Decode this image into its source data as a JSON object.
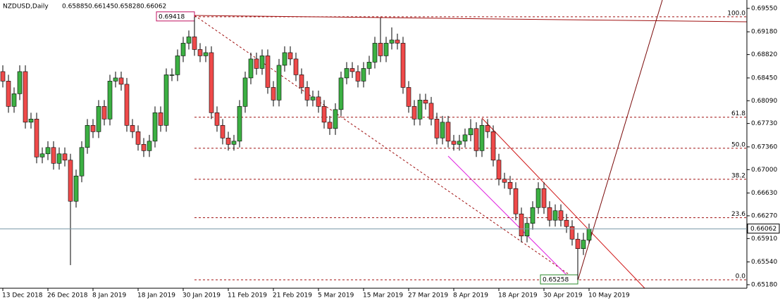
{
  "chart_data": {
    "type": "candlestick",
    "symbol": "NZDUSD,Daily",
    "up_color": "#3cb043",
    "down_color": "#ef4a4a",
    "current_line_color": "#7a9aa8",
    "categories": [
      "13 Dec 2018",
      null,
      null,
      null,
      null,
      null,
      null,
      null,
      "26 Dec 2018",
      null,
      null,
      null,
      null,
      null,
      null,
      null,
      "8 Jan 2019",
      null,
      null,
      null,
      null,
      null,
      null,
      null,
      "18 Jan 2019",
      null,
      null,
      null,
      null,
      null,
      null,
      null,
      "30 Jan 2019",
      null,
      null,
      null,
      null,
      null,
      null,
      null,
      "11 Feb 2019",
      null,
      null,
      null,
      null,
      null,
      null,
      null,
      "21 Feb 2019",
      null,
      null,
      null,
      null,
      null,
      null,
      null,
      "5 Mar 2019",
      null,
      null,
      null,
      null,
      null,
      null,
      null,
      "15 Mar 2019",
      null,
      null,
      null,
      null,
      null,
      null,
      null,
      "27 Mar 2019",
      null,
      null,
      null,
      null,
      null,
      null,
      null,
      "8 Apr 2019",
      null,
      null,
      null,
      null,
      null,
      null,
      null,
      "18 Apr 2019",
      null,
      null,
      null,
      null,
      null,
      null,
      null,
      "30 Apr 2019",
      null,
      null,
      null,
      null,
      null,
      null,
      null,
      "10 May 2019"
    ],
    "open": [
      0.6855,
      0.684,
      0.68,
      0.682,
      0.6855,
      0.6775,
      0.678,
      0.672,
      0.6725,
      0.6735,
      0.671,
      0.6725,
      0.6715,
      0.665,
      0.669,
      0.6735,
      0.677,
      0.676,
      0.68,
      0.678,
      0.684,
      0.6845,
      0.6835,
      0.677,
      0.676,
      0.674,
      0.673,
      0.6745,
      0.679,
      0.677,
      0.685,
      0.685,
      0.688,
      0.69,
      0.691,
      0.689,
      0.688,
      0.6885,
      0.679,
      0.677,
      0.675,
      0.674,
      0.6745,
      0.68,
      0.6845,
      0.6875,
      0.686,
      0.688,
      0.683,
      0.681,
      0.6865,
      0.6885,
      0.6875,
      0.685,
      0.683,
      0.681,
      0.6815,
      0.68,
      0.6775,
      0.6765,
      0.6795,
      0.6845,
      0.686,
      0.6855,
      0.684,
      0.686,
      0.687,
      0.69,
      0.688,
      0.69,
      0.6905,
      0.69,
      0.683,
      0.68,
      0.678,
      0.681,
      0.6805,
      0.678,
      0.675,
      0.6775,
      0.6745,
      0.674,
      0.6745,
      0.6755,
      0.6765,
      0.673,
      0.677,
      0.676,
      0.6715,
      0.6685,
      0.668,
      0.667,
      0.663,
      0.6595,
      0.6615,
      0.664,
      0.667,
      0.664,
      0.662,
      0.6635,
      0.662,
      0.661,
      0.659,
      0.6575,
      0.65885
    ],
    "high": [
      0.6865,
      0.685,
      0.683,
      0.6865,
      0.6865,
      0.679,
      0.679,
      0.6735,
      0.6745,
      0.6745,
      0.6735,
      0.6735,
      0.6725,
      0.67,
      0.6745,
      0.678,
      0.678,
      0.681,
      0.681,
      0.685,
      0.6855,
      0.6855,
      0.6845,
      0.678,
      0.677,
      0.675,
      0.6755,
      0.68,
      0.68,
      0.686,
      0.686,
      0.689,
      0.691,
      0.692,
      0.69418,
      0.69,
      0.6895,
      0.6895,
      0.68,
      0.678,
      0.676,
      0.6755,
      0.681,
      0.6855,
      0.6885,
      0.6885,
      0.689,
      0.689,
      0.684,
      0.6875,
      0.6895,
      0.6895,
      0.6885,
      0.686,
      0.684,
      0.6825,
      0.6825,
      0.681,
      0.6785,
      0.6805,
      0.6855,
      0.687,
      0.687,
      0.6865,
      0.687,
      0.688,
      0.691,
      0.694,
      0.691,
      0.6925,
      0.6915,
      0.691,
      0.684,
      0.681,
      0.682,
      0.682,
      0.6815,
      0.679,
      0.6785,
      0.6785,
      0.6755,
      0.6755,
      0.6765,
      0.678,
      0.6775,
      0.678,
      0.678,
      0.677,
      0.6725,
      0.6695,
      0.669,
      0.668,
      0.664,
      0.6625,
      0.665,
      0.668,
      0.668,
      0.665,
      0.6645,
      0.6645,
      0.663,
      0.662,
      0.66,
      0.66,
      0.66145
    ],
    "low": [
      0.683,
      0.679,
      0.679,
      0.681,
      0.6765,
      0.6765,
      0.671,
      0.671,
      0.6715,
      0.67,
      0.67,
      0.6705,
      0.6549,
      0.664,
      0.668,
      0.6725,
      0.675,
      0.675,
      0.677,
      0.677,
      0.683,
      0.6825,
      0.676,
      0.675,
      0.673,
      0.672,
      0.672,
      0.6735,
      0.676,
      0.676,
      0.684,
      0.684,
      0.687,
      0.689,
      0.688,
      0.687,
      0.687,
      0.678,
      0.676,
      0.674,
      0.673,
      0.673,
      0.6735,
      0.679,
      0.6835,
      0.685,
      0.685,
      0.682,
      0.68,
      0.68,
      0.6855,
      0.6865,
      0.684,
      0.682,
      0.68,
      0.68,
      0.679,
      0.6765,
      0.6755,
      0.6755,
      0.6785,
      0.6835,
      0.6845,
      0.683,
      0.683,
      0.685,
      0.686,
      0.687,
      0.687,
      0.689,
      0.689,
      0.682,
      0.679,
      0.677,
      0.677,
      0.6795,
      0.677,
      0.674,
      0.674,
      0.6735,
      0.673,
      0.673,
      0.6735,
      0.6745,
      0.672,
      0.672,
      0.675,
      0.6705,
      0.6675,
      0.667,
      0.666,
      0.662,
      0.6585,
      0.6585,
      0.6605,
      0.663,
      0.663,
      0.661,
      0.661,
      0.661,
      0.66,
      0.658,
      0.65258,
      0.6565,
      0.65828
    ],
    "close": [
      0.684,
      0.68,
      0.682,
      0.6855,
      0.6775,
      0.678,
      0.672,
      0.6725,
      0.6735,
      0.671,
      0.6725,
      0.6715,
      0.665,
      0.669,
      0.6735,
      0.677,
      0.676,
      0.68,
      0.678,
      0.684,
      0.6845,
      0.6835,
      0.677,
      0.676,
      0.674,
      0.673,
      0.6745,
      0.679,
      0.677,
      0.685,
      0.685,
      0.688,
      0.69,
      0.691,
      0.689,
      0.688,
      0.6885,
      0.679,
      0.677,
      0.675,
      0.674,
      0.6745,
      0.68,
      0.6845,
      0.6875,
      0.686,
      0.688,
      0.683,
      0.681,
      0.6865,
      0.6885,
      0.6875,
      0.685,
      0.683,
      0.681,
      0.6815,
      0.68,
      0.6775,
      0.6765,
      0.6795,
      0.6845,
      0.686,
      0.6855,
      0.684,
      0.686,
      0.687,
      0.69,
      0.688,
      0.69,
      0.6905,
      0.69,
      0.683,
      0.68,
      0.678,
      0.681,
      0.6805,
      0.678,
      0.675,
      0.6775,
      0.6745,
      0.674,
      0.6745,
      0.6755,
      0.6765,
      0.673,
      0.677,
      0.676,
      0.6715,
      0.6685,
      0.668,
      0.667,
      0.663,
      0.6595,
      0.6615,
      0.664,
      0.667,
      0.664,
      0.662,
      0.6635,
      0.662,
      0.661,
      0.659,
      0.6575,
      0.65885,
      0.66062
    ],
    "ylim": [
      0.65124,
      0.69683
    ],
    "yticks": [
      {
        "value": 0.6955,
        "label": "0.69550"
      },
      {
        "value": 0.6918,
        "label": "0.69180"
      },
      {
        "value": 0.6882,
        "label": "0.68820"
      },
      {
        "value": 0.6845,
        "label": "0.68450"
      },
      {
        "value": 0.6809,
        "label": "0.68090"
      },
      {
        "value": 0.6773,
        "label": "0.67730"
      },
      {
        "value": 0.6736,
        "label": "0.67360"
      },
      {
        "value": 0.67,
        "label": "0.67000"
      },
      {
        "value": 0.6663,
        "label": "0.66630"
      },
      {
        "value": 0.6627,
        "label": "0.66270"
      },
      {
        "value": 0.6591,
        "label": "0.65910"
      },
      {
        "value": 0.6554,
        "label": "0.65540"
      },
      {
        "value": 0.6518,
        "label": "0.65180"
      }
    ],
    "fibonacci": {
      "high": 0.69418,
      "low": 0.65258,
      "color": "#a01010",
      "levels": [
        {
          "value": 100,
          "label": "100.0"
        },
        61.8,
        {
          "value": 50,
          "label": "50.0"
        },
        38.2,
        23.6,
        {
          "value": 0,
          "label": "0.0"
        }
      ]
    }
  }
}
